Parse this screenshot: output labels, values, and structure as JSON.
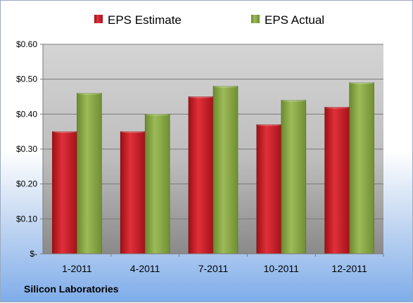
{
  "company_label": "Silicon Laboratories",
  "colors": {
    "estimate": "#c0141c",
    "actual": "#7fa03a"
  },
  "chart_data": {
    "type": "bar",
    "categories": [
      "1-2011",
      "4-2011",
      "7-2011",
      "10-2011",
      "12-2011"
    ],
    "series": [
      {
        "name": "EPS Estimate",
        "values": [
          0.35,
          0.35,
          0.45,
          0.37,
          0.42
        ]
      },
      {
        "name": "EPS Actual",
        "values": [
          0.46,
          0.4,
          0.48,
          0.44,
          0.49
        ]
      }
    ],
    "ylim": [
      0,
      0.6
    ],
    "yticks": [
      0,
      0.1,
      0.2,
      0.3,
      0.4,
      0.5,
      0.6
    ],
    "ytick_labels": [
      "$-",
      "$0.10",
      "$0.20",
      "$0.30",
      "$0.40",
      "$0.50",
      "$0.60"
    ],
    "grid": true,
    "legend": "top"
  }
}
